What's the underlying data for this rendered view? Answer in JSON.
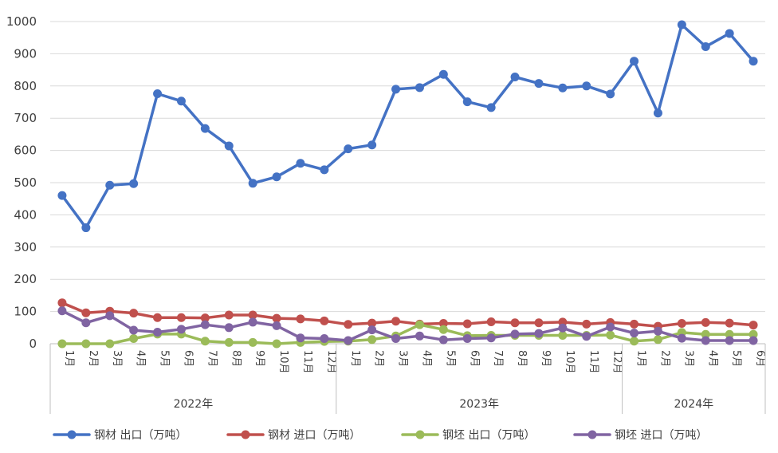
{
  "chart_data": {
    "type": "line",
    "title": "",
    "xlabel": "",
    "ylabel": "",
    "ylim": [
      0,
      1000
    ],
    "yticks": [
      0,
      100,
      200,
      300,
      400,
      500,
      600,
      700,
      800,
      900,
      1000
    ],
    "grid": true,
    "legend_position": "bottom",
    "categories": [
      "1月",
      "2月",
      "3月",
      "4月",
      "5月",
      "6月",
      "7月",
      "8月",
      "9月",
      "10月",
      "11月",
      "12月",
      "1月",
      "2月",
      "3月",
      "4月",
      "5月",
      "6月",
      "7月",
      "8月",
      "9月",
      "10月",
      "11月",
      "12月",
      "1月",
      "2月",
      "3月",
      "4月",
      "5月",
      "6月"
    ],
    "year_groups": [
      {
        "label": "2022年",
        "count": 12
      },
      {
        "label": "2023年",
        "count": 12
      },
      {
        "label": "2024年",
        "count": 6
      }
    ],
    "series": [
      {
        "name": "钢材 出口（万吨）",
        "color": "#4472C4",
        "values": [
          460,
          360,
          492,
          497,
          776,
          753,
          668,
          614,
          498,
          518,
          560,
          540,
          605,
          617,
          790,
          795,
          836,
          751,
          733,
          828,
          808,
          794,
          800,
          775,
          877,
          716,
          990,
          922,
          963,
          877
        ]
      },
      {
        "name": "钢材 进口（万吨）",
        "color": "#C0504D",
        "values": [
          127,
          96,
          101,
          95,
          81,
          81,
          80,
          89,
          89,
          79,
          77,
          71,
          60,
          64,
          70,
          61,
          63,
          62,
          68,
          65,
          65,
          67,
          61,
          66,
          61,
          54,
          63,
          66,
          64,
          58
        ]
      },
      {
        "name": "钢坯 出口（万吨）",
        "color": "#9BBB59",
        "values": [
          0,
          0,
          0,
          16,
          30,
          30,
          8,
          4,
          4,
          0,
          4,
          7,
          8,
          13,
          24,
          59,
          44,
          25,
          26,
          26,
          26,
          26,
          26,
          27,
          8,
          13,
          35,
          29,
          29,
          29
        ]
      },
      {
        "name": "钢坯 进口（万吨）",
        "color": "#8064A2",
        "values": [
          102,
          65,
          87,
          42,
          36,
          45,
          59,
          50,
          67,
          56,
          18,
          16,
          10,
          43,
          16,
          24,
          12,
          16,
          18,
          30,
          32,
          49,
          23,
          52,
          33,
          39,
          17,
          10,
          10,
          10
        ]
      }
    ]
  }
}
